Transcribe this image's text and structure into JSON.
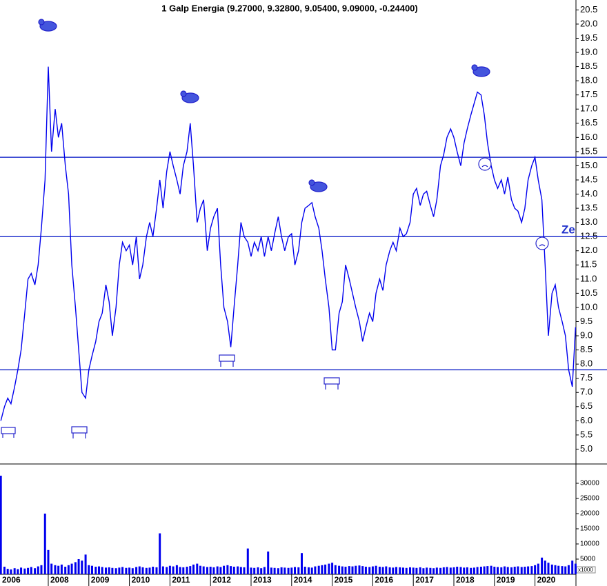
{
  "chart_data": [
    {
      "type": "line",
      "title": "1 Galp Energia (9.27000, 9.32800, 9.05400, 9.09000, -0.24400)",
      "color": "#0000ee",
      "xlim": [
        2006.81,
        2021.01
      ],
      "ylim": [
        4.5,
        20.85
      ],
      "yticks": [
        {
          "value": 5,
          "label": "5.0"
        },
        5.5,
        {
          "value": 6,
          "label": "6.0"
        },
        6.5,
        {
          "value": 7,
          "label": "7.0"
        },
        7.5,
        {
          "value": 8,
          "label": "8.0"
        },
        8.5,
        {
          "value": 9,
          "label": "9.0"
        },
        9.5,
        {
          "value": 10,
          "label": "10.0"
        },
        10.5,
        {
          "value": 11,
          "label": "11.0"
        },
        11.5,
        {
          "value": 12,
          "label": "12.0"
        },
        12.5,
        {
          "value": 13,
          "label": "13.0"
        },
        13.5,
        {
          "value": 14,
          "label": "14.0"
        },
        14.5,
        {
          "value": 15,
          "label": "15.0"
        },
        15.5,
        {
          "value": 16,
          "label": "16.0"
        },
        16.5,
        {
          "value": 17,
          "label": "17.0"
        },
        17.5,
        {
          "value": 18,
          "label": "18.0"
        },
        18.5,
        {
          "value": 19,
          "label": "19.0"
        },
        19.5,
        {
          "value": 20,
          "label": "20.0"
        },
        20.5
      ],
      "hlines": [
        15.3,
        12.5,
        7.8
      ],
      "annotations": [
        "Ze"
      ],
      "x": [
        2006.83,
        2006.92,
        2007.0,
        2007.08,
        2007.17,
        2007.25,
        2007.33,
        2007.42,
        2007.5,
        2007.58,
        2007.67,
        2007.75,
        2007.83,
        2007.92,
        2008.0,
        2008.08,
        2008.17,
        2008.25,
        2008.33,
        2008.42,
        2008.5,
        2008.58,
        2008.67,
        2008.75,
        2008.83,
        2008.92,
        2009.0,
        2009.08,
        2009.17,
        2009.25,
        2009.33,
        2009.42,
        2009.5,
        2009.58,
        2009.67,
        2009.75,
        2009.83,
        2009.92,
        2010.0,
        2010.08,
        2010.17,
        2010.25,
        2010.33,
        2010.42,
        2010.5,
        2010.58,
        2010.67,
        2010.75,
        2010.83,
        2010.92,
        2011.0,
        2011.08,
        2011.17,
        2011.25,
        2011.33,
        2011.42,
        2011.5,
        2011.58,
        2011.67,
        2011.75,
        2011.83,
        2011.92,
        2012.0,
        2012.08,
        2012.17,
        2012.25,
        2012.33,
        2012.42,
        2012.5,
        2012.58,
        2012.67,
        2012.75,
        2012.83,
        2012.92,
        2013.0,
        2013.08,
        2013.17,
        2013.25,
        2013.33,
        2013.42,
        2013.5,
        2013.58,
        2013.67,
        2013.75,
        2013.83,
        2013.92,
        2014.0,
        2014.08,
        2014.17,
        2014.25,
        2014.33,
        2014.42,
        2014.5,
        2014.58,
        2014.67,
        2014.75,
        2014.83,
        2014.92,
        2015.0,
        2015.08,
        2015.17,
        2015.25,
        2015.33,
        2015.42,
        2015.5,
        2015.58,
        2015.67,
        2015.75,
        2015.83,
        2015.92,
        2016.0,
        2016.08,
        2016.17,
        2016.25,
        2016.33,
        2016.42,
        2016.5,
        2016.58,
        2016.67,
        2016.75,
        2016.83,
        2016.92,
        2017.0,
        2017.08,
        2017.17,
        2017.25,
        2017.33,
        2017.42,
        2017.5,
        2017.58,
        2017.67,
        2017.75,
        2017.83,
        2017.92,
        2018.0,
        2018.08,
        2018.17,
        2018.25,
        2018.33,
        2018.42,
        2018.5,
        2018.58,
        2018.67,
        2018.75,
        2018.83,
        2018.92,
        2019.0,
        2019.08,
        2019.17,
        2019.25,
        2019.33,
        2019.42,
        2019.5,
        2019.58,
        2019.67,
        2019.75,
        2019.83,
        2019.92,
        2020.0,
        2020.08,
        2020.17,
        2020.25,
        2020.33,
        2020.42,
        2020.5,
        2020.58,
        2020.67,
        2020.75,
        2020.83,
        2020.92,
        2021.0
      ],
      "values": [
        6.0,
        6.5,
        6.8,
        6.6,
        7.2,
        7.8,
        8.5,
        9.8,
        11.0,
        11.2,
        10.8,
        11.5,
        12.8,
        14.5,
        18.5,
        15.5,
        17.0,
        16.0,
        16.5,
        15.0,
        14.0,
        11.5,
        10.0,
        8.5,
        7.0,
        6.8,
        7.8,
        8.3,
        8.8,
        9.5,
        9.8,
        10.8,
        10.2,
        9.0,
        10.0,
        11.5,
        12.3,
        12.0,
        12.2,
        11.5,
        12.5,
        11.0,
        11.5,
        12.5,
        13.0,
        12.5,
        13.5,
        14.5,
        13.5,
        14.8,
        15.5,
        15.0,
        14.5,
        14.0,
        15.0,
        15.5,
        16.5,
        15.0,
        13.0,
        13.5,
        13.8,
        12.0,
        12.8,
        13.2,
        13.5,
        11.5,
        10.0,
        9.5,
        8.6,
        10.0,
        11.5,
        13.0,
        12.5,
        12.3,
        11.8,
        12.3,
        12.0,
        12.5,
        11.8,
        12.5,
        12.0,
        12.6,
        13.2,
        12.5,
        12.0,
        12.5,
        12.6,
        11.5,
        12.0,
        13.0,
        13.5,
        13.6,
        13.7,
        13.2,
        12.8,
        12.0,
        11.0,
        10.0,
        8.5,
        8.5,
        9.8,
        10.2,
        11.5,
        11.0,
        10.5,
        10.0,
        9.5,
        8.8,
        9.3,
        9.8,
        9.5,
        10.5,
        11.0,
        10.6,
        11.5,
        12.0,
        12.3,
        12.0,
        12.8,
        12.5,
        12.6,
        13.0,
        14.0,
        14.2,
        13.6,
        14.0,
        14.1,
        13.6,
        13.2,
        13.8,
        15.0,
        15.4,
        16.0,
        16.3,
        16.0,
        15.5,
        15.0,
        15.8,
        16.3,
        16.8,
        17.2,
        17.6,
        17.5,
        16.8,
        15.8,
        15.0,
        14.5,
        14.2,
        14.5,
        14.0,
        14.6,
        13.8,
        13.5,
        13.4,
        13.0,
        13.5,
        14.5,
        15.0,
        15.3,
        14.5,
        13.8,
        11.5,
        9.0,
        10.5,
        10.8,
        10.0,
        9.5,
        9.0,
        7.8,
        7.2,
        9.3
      ]
    },
    {
      "type": "bar",
      "color": "#0000ee",
      "unit_label": "x1000",
      "xlim": [
        2006.81,
        2021.01
      ],
      "xticks": [
        2006,
        2008,
        2009,
        2010,
        2011,
        2012,
        2013,
        2014,
        2015,
        2016,
        2017,
        2018,
        2019,
        2020
      ],
      "ylim": [
        0,
        35680
      ],
      "yticks": [
        5000,
        10000,
        15000,
        20000,
        25000,
        30000
      ],
      "x": [
        2006.83,
        2006.92,
        2007.0,
        2007.08,
        2007.17,
        2007.25,
        2007.33,
        2007.42,
        2007.5,
        2007.58,
        2007.67,
        2007.75,
        2007.83,
        2007.92,
        2008.0,
        2008.08,
        2008.17,
        2008.25,
        2008.33,
        2008.42,
        2008.5,
        2008.58,
        2008.67,
        2008.75,
        2008.83,
        2008.92,
        2009.0,
        2009.08,
        2009.17,
        2009.25,
        2009.33,
        2009.42,
        2009.5,
        2009.58,
        2009.67,
        2009.75,
        2009.83,
        2009.92,
        2010.0,
        2010.08,
        2010.17,
        2010.25,
        2010.33,
        2010.42,
        2010.5,
        2010.58,
        2010.67,
        2010.75,
        2010.83,
        2010.92,
        2011.0,
        2011.08,
        2011.17,
        2011.25,
        2011.33,
        2011.42,
        2011.5,
        2011.58,
        2011.67,
        2011.75,
        2011.83,
        2011.92,
        2012.0,
        2012.08,
        2012.17,
        2012.25,
        2012.33,
        2012.42,
        2012.5,
        2012.58,
        2012.67,
        2012.75,
        2012.83,
        2012.92,
        2013.0,
        2013.08,
        2013.17,
        2013.25,
        2013.33,
        2013.42,
        2013.5,
        2013.58,
        2013.67,
        2013.75,
        2013.83,
        2013.92,
        2014.0,
        2014.08,
        2014.17,
        2014.25,
        2014.33,
        2014.42,
        2014.5,
        2014.58,
        2014.67,
        2014.75,
        2014.83,
        2014.92,
        2015.0,
        2015.08,
        2015.17,
        2015.25,
        2015.33,
        2015.42,
        2015.5,
        2015.58,
        2015.67,
        2015.75,
        2015.83,
        2015.92,
        2016.0,
        2016.08,
        2016.17,
        2016.25,
        2016.33,
        2016.42,
        2016.5,
        2016.58,
        2016.67,
        2016.75,
        2016.83,
        2016.92,
        2017.0,
        2017.08,
        2017.17,
        2017.25,
        2017.33,
        2017.42,
        2017.5,
        2017.58,
        2017.67,
        2017.75,
        2017.83,
        2017.92,
        2018.0,
        2018.08,
        2018.17,
        2018.25,
        2018.33,
        2018.42,
        2018.5,
        2018.58,
        2018.67,
        2018.75,
        2018.83,
        2018.92,
        2019.0,
        2019.08,
        2019.17,
        2019.25,
        2019.33,
        2019.42,
        2019.5,
        2019.58,
        2019.67,
        2019.75,
        2019.83,
        2019.92,
        2020.0,
        2020.08,
        2020.17,
        2020.25,
        2020.33,
        2020.42,
        2020.5,
        2020.58,
        2020.67,
        2020.75,
        2020.83,
        2020.92,
        2021.0
      ],
      "values": [
        32500,
        2500,
        1800,
        1600,
        2000,
        1700,
        2200,
        1900,
        2100,
        2400,
        2000,
        2600,
        3000,
        20000,
        8000,
        3500,
        3000,
        2800,
        3200,
        2500,
        3000,
        3500,
        4000,
        5000,
        4500,
        6500,
        3000,
        2800,
        2500,
        2600,
        2400,
        2200,
        2300,
        2100,
        2000,
        2200,
        2400,
        2100,
        2200,
        2000,
        2400,
        2600,
        2300,
        2100,
        2200,
        2500,
        2300,
        13500,
        2600,
        2400,
        2800,
        2600,
        3000,
        2400,
        2300,
        2500,
        2700,
        3200,
        3500,
        2800,
        2600,
        2400,
        2500,
        2300,
        2600,
        2400,
        2800,
        3000,
        2700,
        2500,
        2600,
        2400,
        2300,
        8500,
        2200,
        2100,
        2300,
        2000,
        2400,
        7500,
        2200,
        2100,
        2000,
        2300,
        2200,
        2100,
        2200,
        2400,
        2300,
        7000,
        2500,
        2300,
        2200,
        2600,
        2800,
        3000,
        3200,
        3500,
        3800,
        3000,
        2800,
        2600,
        2500,
        2700,
        2600,
        2800,
        2900,
        2700,
        2500,
        2400,
        2600,
        2800,
        2500,
        2400,
        2600,
        2300,
        2200,
        2400,
        2300,
        2200,
        2100,
        2300,
        2200,
        2100,
        2300,
        2000,
        2200,
        2100,
        2000,
        2200,
        2100,
        2300,
        2400,
        2200,
        2300,
        2500,
        2400,
        2200,
        2300,
        2100,
        2200,
        2400,
        2500,
        2600,
        2700,
        2800,
        2500,
        2400,
        2300,
        2600,
        2400,
        2300,
        2500,
        2600,
        2400,
        2500,
        2600,
        2700,
        3000,
        3500,
        5500,
        4500,
        3800,
        3200,
        3000,
        2800,
        2700,
        2600,
        3000,
        4500,
        3500
      ]
    }
  ]
}
